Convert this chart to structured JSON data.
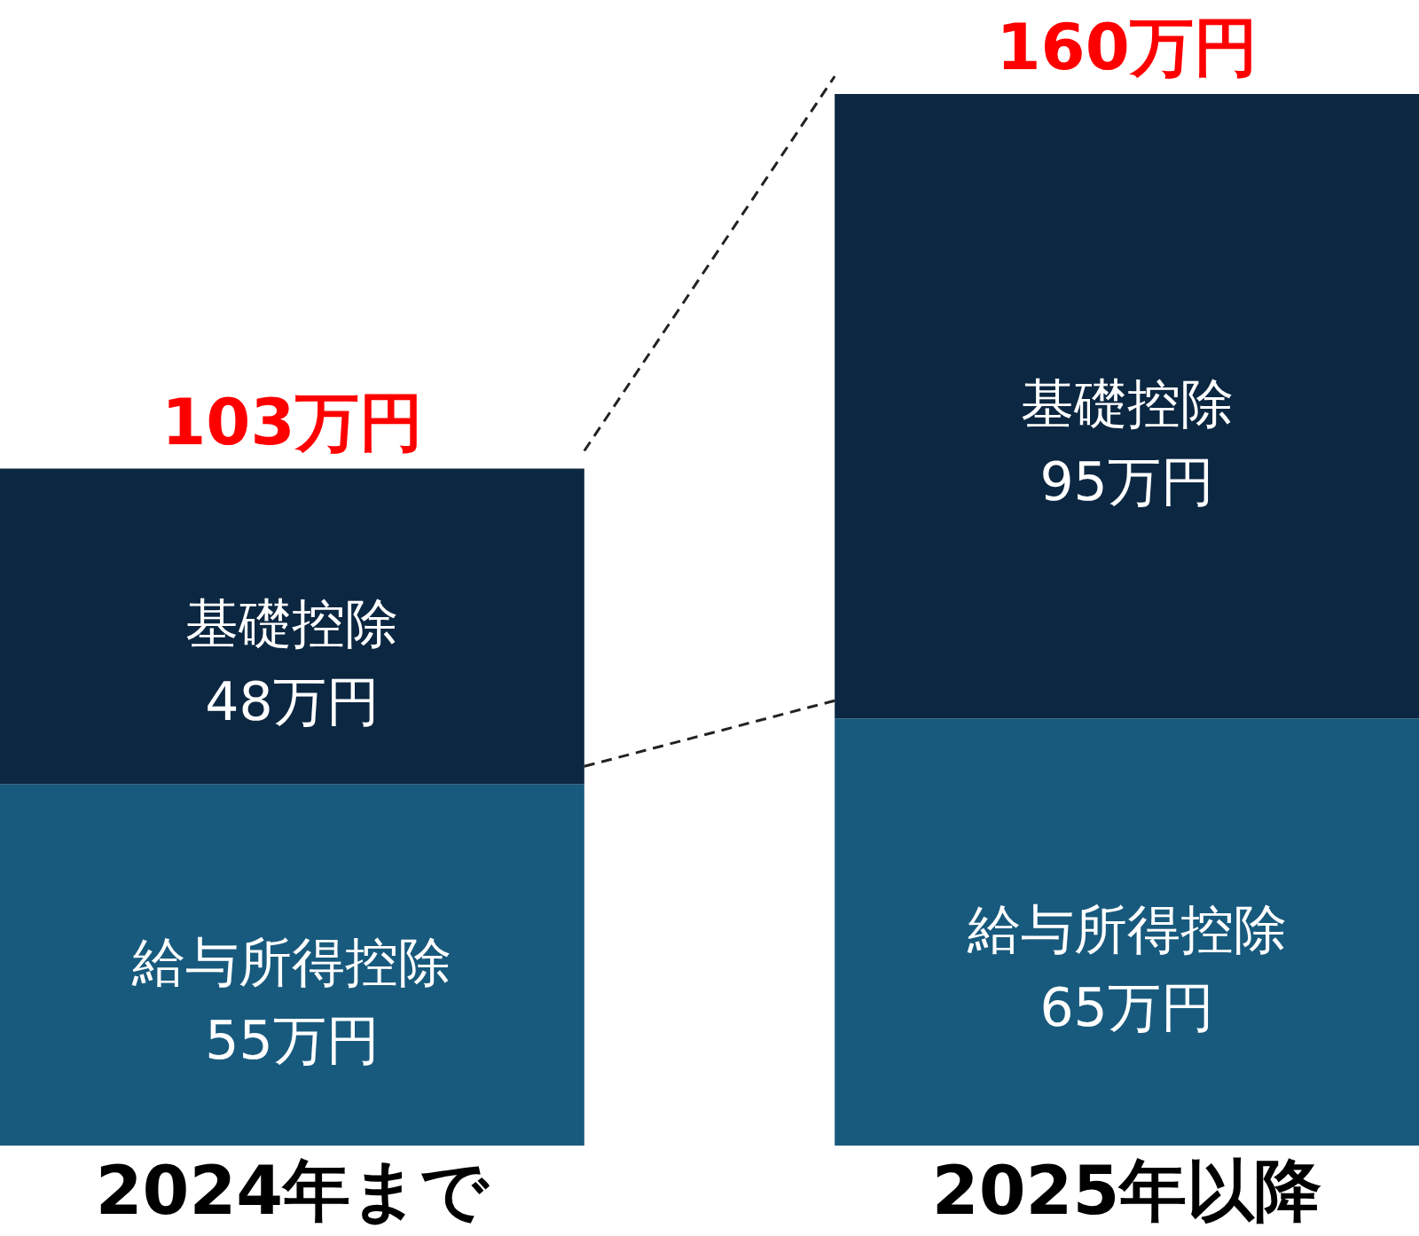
{
  "chart_data": {
    "type": "bar",
    "stacked": true,
    "categories": [
      "2024年まで",
      "2025年以降"
    ],
    "series": [
      {
        "name": "給与所得控除",
        "color": "#185a7d",
        "values": [
          55,
          65
        ],
        "value_labels": [
          "55万円",
          "65万円"
        ]
      },
      {
        "name": "基礎控除",
        "color": "#0c2741",
        "values": [
          48,
          95
        ],
        "value_labels": [
          "48万円",
          "95万円"
        ]
      }
    ],
    "totals": [
      "103万円",
      "160万円"
    ],
    "tick_labels": "x"
  }
}
